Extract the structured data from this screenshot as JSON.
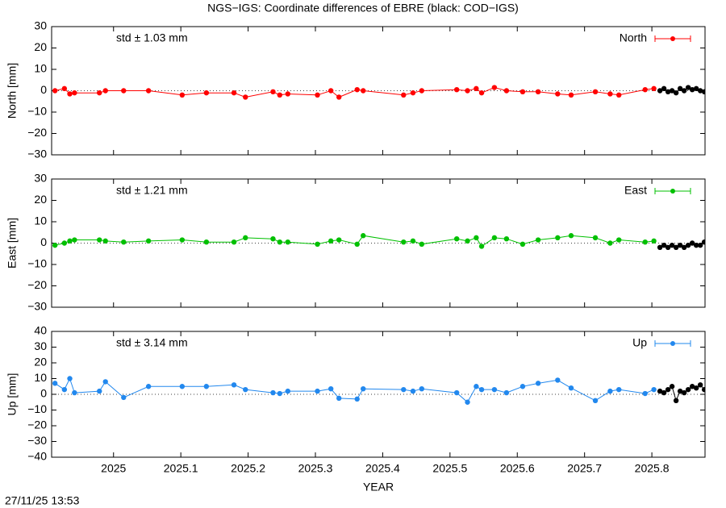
{
  "title": "NGS−IGS: Coordinate differences of EBRE (black: COD−IGS)",
  "timestamp": "27/11/25 13:53",
  "chart_data": [
    {
      "type": "line",
      "ylabel": "North [mm]",
      "annotation": "std ± 1.03 mm",
      "annotation_color": "#ff0000",
      "xlim": [
        2024.908,
        2025.879
      ],
      "xticks": [
        2025,
        2025.1,
        2025.2,
        2025.3,
        2025.4,
        2025.5,
        2025.6,
        2025.7,
        2025.8
      ],
      "xtick_labels": false,
      "ylim": [
        -30,
        30
      ],
      "yticks": [
        {
          "value": -30,
          "label": "−30"
        },
        {
          "value": -20,
          "label": "−20"
        },
        {
          "value": -10,
          "label": "−10"
        },
        0,
        10,
        20,
        30
      ],
      "zero_line": true,
      "legend": "top-right",
      "series": [
        {
          "name": "North",
          "color": "#ff0000",
          "x": [
            2024.913,
            2024.927,
            2024.935,
            2024.942,
            2024.979,
            2024.988,
            2025.015,
            2025.052,
            2025.102,
            2025.138,
            2025.179,
            2025.196,
            2025.237,
            2025.247,
            2025.259,
            2025.303,
            2025.323,
            2025.335,
            2025.362,
            2025.371,
            2025.431,
            2025.445,
            2025.458,
            2025.51,
            2025.526,
            2025.539,
            2025.547,
            2025.566,
            2025.584,
            2025.608,
            2025.631,
            2025.66,
            2025.68,
            2025.716,
            2025.738,
            2025.751,
            2025.79,
            2025.803
          ],
          "values": [
            0,
            1,
            -1.5,
            -1,
            -1,
            0,
            0,
            0,
            -2,
            -1,
            -1,
            -3,
            -0.5,
            -2,
            -1.5,
            -2,
            0,
            -3,
            0.5,
            0,
            -2,
            -1,
            0,
            0.5,
            0,
            1,
            -1,
            1.5,
            0,
            -0.5,
            -0.5,
            -1.5,
            -2,
            -0.5,
            -1.5,
            -2,
            0.5,
            1
          ]
        },
        {
          "color": "#000000",
          "x": [
            2025.812,
            2025.818,
            2025.824,
            2025.83,
            2025.836,
            2025.842,
            2025.848,
            2025.854,
            2025.86,
            2025.866,
            2025.872,
            2025.878
          ],
          "values": [
            0,
            1,
            -0.5,
            0,
            -1,
            1,
            0,
            1.5,
            0.5,
            1,
            0,
            -0.5
          ]
        }
      ]
    },
    {
      "type": "line",
      "ylabel": "East [mm]",
      "annotation": "std ± 1.21 mm",
      "annotation_color": "#00c000",
      "xlim": [
        2024.908,
        2025.879
      ],
      "xticks": [
        2025,
        2025.1,
        2025.2,
        2025.3,
        2025.4,
        2025.5,
        2025.6,
        2025.7,
        2025.8
      ],
      "xtick_labels": false,
      "ylim": [
        -30,
        30
      ],
      "yticks": [
        {
          "value": -30,
          "label": "−30"
        },
        {
          "value": -20,
          "label": "−20"
        },
        {
          "value": -10,
          "label": "−10"
        },
        0,
        10,
        20,
        30
      ],
      "zero_line": true,
      "legend": "top-right",
      "series": [
        {
          "name": "East",
          "color": "#00c000",
          "x": [
            2024.913,
            2024.927,
            2024.935,
            2024.942,
            2024.979,
            2024.988,
            2025.015,
            2025.052,
            2025.102,
            2025.138,
            2025.179,
            2025.196,
            2025.237,
            2025.247,
            2025.259,
            2025.303,
            2025.323,
            2025.335,
            2025.362,
            2025.371,
            2025.431,
            2025.445,
            2025.458,
            2025.51,
            2025.526,
            2025.539,
            2025.547,
            2025.566,
            2025.584,
            2025.608,
            2025.631,
            2025.66,
            2025.68,
            2025.716,
            2025.738,
            2025.751,
            2025.79,
            2025.803
          ],
          "values": [
            -1,
            0,
            1,
            1.5,
            1.5,
            1,
            0.5,
            1,
            1.5,
            0.5,
            0.5,
            2.5,
            2,
            0.5,
            0.5,
            -0.5,
            1,
            1.5,
            -0.5,
            3.5,
            0.5,
            1,
            -0.5,
            2,
            1,
            2.5,
            -1.5,
            2.5,
            2,
            -0.5,
            1.5,
            2.5,
            3.5,
            2.5,
            0,
            1.5,
            0.5,
            1
          ]
        },
        {
          "color": "#000000",
          "x": [
            2025.812,
            2025.818,
            2025.824,
            2025.83,
            2025.836,
            2025.842,
            2025.848,
            2025.854,
            2025.86,
            2025.866,
            2025.872,
            2025.878
          ],
          "values": [
            -2,
            -1,
            -2,
            -1,
            -2,
            -1,
            -2,
            -1,
            0,
            -1,
            -1,
            0.5
          ]
        }
      ]
    },
    {
      "type": "line",
      "ylabel": "Up [mm]",
      "annotation": "std ± 3.14 mm",
      "annotation_color": "#2288ee",
      "xlim": [
        2024.908,
        2025.879
      ],
      "xticks": [
        2025,
        2025.1,
        2025.2,
        2025.3,
        2025.4,
        2025.5,
        2025.6,
        2025.7,
        2025.8
      ],
      "xtick_labels": true,
      "xlabel": "YEAR",
      "ylim": [
        -40,
        40
      ],
      "yticks": [
        {
          "value": -40,
          "label": "−40"
        },
        {
          "value": -30,
          "label": "−30"
        },
        {
          "value": -20,
          "label": "−20"
        },
        {
          "value": -10,
          "label": "−10"
        },
        0,
        10,
        20,
        30,
        40
      ],
      "zero_line": true,
      "legend": "top-right",
      "series": [
        {
          "name": "Up",
          "color": "#2288ee",
          "x": [
            2024.913,
            2024.927,
            2024.935,
            2024.942,
            2024.979,
            2024.988,
            2025.015,
            2025.052,
            2025.102,
            2025.138,
            2025.179,
            2025.196,
            2025.237,
            2025.247,
            2025.259,
            2025.303,
            2025.323,
            2025.335,
            2025.362,
            2025.371,
            2025.431,
            2025.445,
            2025.458,
            2025.51,
            2025.526,
            2025.539,
            2025.547,
            2025.566,
            2025.584,
            2025.608,
            2025.631,
            2025.66,
            2025.68,
            2025.716,
            2025.738,
            2025.751,
            2025.79,
            2025.803
          ],
          "values": [
            7,
            3,
            10,
            1,
            2,
            8,
            -2,
            5,
            5,
            5,
            6,
            3,
            1,
            0.5,
            2,
            2,
            3.5,
            -2.5,
            -3,
            3.5,
            3,
            2,
            3.5,
            1,
            -5,
            5,
            3,
            3,
            1,
            5,
            7,
            9,
            4,
            -4,
            2,
            3,
            0.5,
            3
          ]
        },
        {
          "color": "#000000",
          "x": [
            2025.812,
            2025.818,
            2025.824,
            2025.83,
            2025.836,
            2025.842,
            2025.848,
            2025.854,
            2025.86,
            2025.866,
            2025.872,
            2025.878
          ],
          "values": [
            2,
            1,
            3,
            5,
            -4,
            2,
            1,
            3,
            5,
            4,
            6,
            3
          ]
        }
      ]
    }
  ]
}
